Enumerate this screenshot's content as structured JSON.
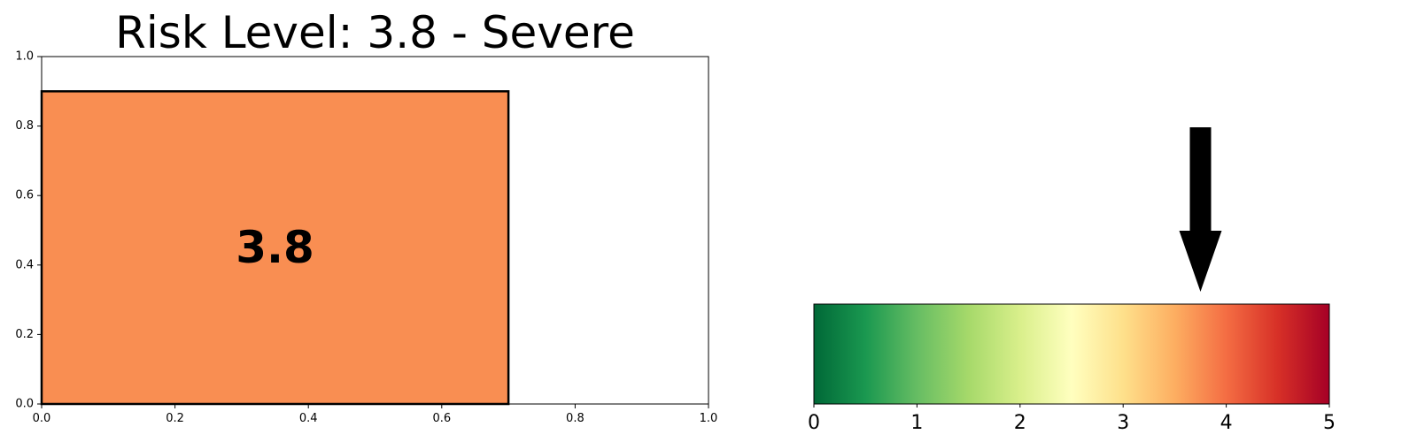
{
  "chart_data": [
    {
      "type": "bar",
      "title": "Risk Level: 3.8 - Severe",
      "orientation": "horizontal",
      "bars": [
        {
          "x_start": 0.0,
          "x_end": 0.7,
          "y_start": 0.0,
          "y_end": 0.9,
          "label": "3.8",
          "color": "#f98e52"
        }
      ],
      "xlim": [
        0,
        1.0
      ],
      "ylim": [
        0,
        1.0
      ],
      "xticks": [
        "0.0",
        "0.2",
        "0.4",
        "0.6",
        "0.8",
        "1.0"
      ],
      "yticks": [
        "0.0",
        "0.2",
        "0.4",
        "0.6",
        "0.8",
        "1.0"
      ],
      "grid": false
    },
    {
      "type": "heatmap",
      "subtype": "colorbar-gauge",
      "colormap": "RdYlGn_r",
      "colormap_stops": [
        "#006837",
        "#1a9850",
        "#66bd63",
        "#a6d96a",
        "#d9ef8b",
        "#ffffbf",
        "#fee08b",
        "#fdae61",
        "#f46d43",
        "#d73027",
        "#a50026"
      ],
      "xlim": [
        0,
        5
      ],
      "xticks": [
        "0",
        "1",
        "2",
        "3",
        "4",
        "5"
      ],
      "marker": {
        "value": 3.75,
        "shape": "down-arrow",
        "color": "#000000"
      }
    }
  ]
}
